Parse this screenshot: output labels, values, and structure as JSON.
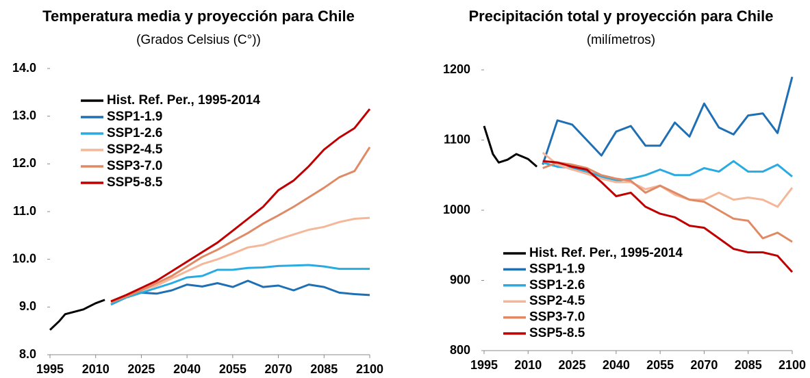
{
  "chart_data": [
    {
      "type": "line",
      "title": "Temperatura media y proyección para Chile",
      "subtitle": "(Grados Celsius (C°))",
      "xlim": [
        1995,
        2100
      ],
      "xticks": [
        1995,
        2010,
        2025,
        2040,
        2055,
        2070,
        2085,
        2100
      ],
      "ylim": [
        8,
        14
      ],
      "yticks": [
        {
          "value": 8,
          "label": "8.0"
        },
        {
          "value": 9,
          "label": "9.0"
        },
        {
          "value": 10,
          "label": "10.0"
        },
        {
          "value": 11,
          "label": "11.0"
        },
        {
          "value": 12,
          "label": "12.0"
        },
        {
          "value": 13,
          "label": "13.0"
        },
        {
          "value": 14,
          "label": "14.0"
        }
      ],
      "legend": "upper left",
      "series": [
        {
          "name": "Hist. Ref. Per., 1995-2014",
          "color": "#000000",
          "x": [
            1995,
            1998,
            2000,
            2003,
            2006,
            2010,
            2013
          ],
          "values": [
            8.52,
            8.7,
            8.85,
            8.9,
            8.95,
            9.08,
            9.15
          ]
        },
        {
          "name": "SSP1-1.9",
          "color": "#1f6fb4",
          "x": [
            2015,
            2020,
            2025,
            2030,
            2035,
            2040,
            2045,
            2050,
            2055,
            2060,
            2065,
            2070,
            2075,
            2080,
            2085,
            2090,
            2095,
            2100
          ],
          "values": [
            9.05,
            9.2,
            9.3,
            9.28,
            9.35,
            9.47,
            9.43,
            9.5,
            9.42,
            9.55,
            9.42,
            9.45,
            9.35,
            9.47,
            9.42,
            9.3,
            9.27,
            9.25
          ]
        },
        {
          "name": "SSP1-2.6",
          "color": "#29abe2",
          "x": [
            2015,
            2020,
            2025,
            2030,
            2035,
            2040,
            2045,
            2050,
            2055,
            2060,
            2065,
            2070,
            2075,
            2080,
            2085,
            2090,
            2095,
            2100
          ],
          "values": [
            9.05,
            9.2,
            9.3,
            9.4,
            9.5,
            9.62,
            9.65,
            9.78,
            9.78,
            9.82,
            9.83,
            9.86,
            9.87,
            9.88,
            9.85,
            9.8,
            9.8,
            9.8
          ]
        },
        {
          "name": "SSP2-4.5",
          "color": "#f4b79a",
          "x": [
            2015,
            2020,
            2025,
            2030,
            2035,
            2040,
            2045,
            2050,
            2055,
            2060,
            2065,
            2070,
            2075,
            2080,
            2085,
            2090,
            2095,
            2100
          ],
          "values": [
            9.1,
            9.22,
            9.35,
            9.45,
            9.6,
            9.75,
            9.9,
            10.0,
            10.12,
            10.25,
            10.3,
            10.42,
            10.52,
            10.62,
            10.68,
            10.78,
            10.85,
            10.87
          ]
        },
        {
          "name": "SSP3-7.0",
          "color": "#e08a65",
          "x": [
            2015,
            2020,
            2025,
            2030,
            2035,
            2040,
            2045,
            2050,
            2055,
            2060,
            2065,
            2070,
            2075,
            2080,
            2085,
            2090,
            2095,
            2100
          ],
          "values": [
            9.1,
            9.22,
            9.35,
            9.5,
            9.65,
            9.85,
            10.05,
            10.2,
            10.38,
            10.55,
            10.75,
            10.92,
            11.1,
            11.3,
            11.5,
            11.72,
            11.85,
            12.35
          ]
        },
        {
          "name": "SSP5-8.5",
          "color": "#c00000",
          "x": [
            2015,
            2020,
            2025,
            2030,
            2035,
            2040,
            2045,
            2050,
            2055,
            2060,
            2065,
            2070,
            2075,
            2080,
            2085,
            2090,
            2095,
            2100
          ],
          "values": [
            9.12,
            9.25,
            9.4,
            9.55,
            9.75,
            9.95,
            10.15,
            10.35,
            10.6,
            10.85,
            11.1,
            11.45,
            11.65,
            11.95,
            12.3,
            12.55,
            12.75,
            13.15
          ]
        }
      ]
    },
    {
      "type": "line",
      "title": "Precipitación total y proyección para Chile",
      "subtitle": "(milímetros)",
      "xlim": [
        1995,
        2100
      ],
      "xticks": [
        1995,
        2010,
        2025,
        2040,
        2055,
        2070,
        2085,
        2100
      ],
      "ylim": [
        800,
        1200
      ],
      "yticks": [
        800,
        900,
        1000,
        1100,
        1200
      ],
      "legend": "lower left",
      "series": [
        {
          "name": "Hist. Ref. Per., 1995-2014",
          "color": "#000000",
          "x": [
            1995,
            1998,
            2000,
            2003,
            2006,
            2010,
            2013
          ],
          "values": [
            1120,
            1080,
            1068,
            1072,
            1080,
            1073,
            1062
          ]
        },
        {
          "name": "SSP1-1.9",
          "color": "#1f6fb4",
          "x": [
            2015,
            2020,
            2025,
            2030,
            2035,
            2040,
            2045,
            2050,
            2055,
            2060,
            2065,
            2070,
            2075,
            2080,
            2085,
            2090,
            2095,
            2100
          ],
          "values": [
            1065,
            1128,
            1122,
            1100,
            1078,
            1112,
            1120,
            1092,
            1092,
            1125,
            1105,
            1152,
            1118,
            1108,
            1135,
            1138,
            1110,
            1190
          ]
        },
        {
          "name": "SSP1-2.6",
          "color": "#29abe2",
          "x": [
            2015,
            2020,
            2025,
            2030,
            2035,
            2040,
            2045,
            2050,
            2055,
            2060,
            2065,
            2070,
            2075,
            2080,
            2085,
            2090,
            2095,
            2100
          ],
          "values": [
            1068,
            1062,
            1060,
            1055,
            1048,
            1042,
            1045,
            1050,
            1058,
            1050,
            1050,
            1060,
            1055,
            1070,
            1055,
            1055,
            1065,
            1048
          ]
        },
        {
          "name": "SSP2-4.5",
          "color": "#f4b79a",
          "x": [
            2015,
            2020,
            2025,
            2030,
            2035,
            2040,
            2045,
            2050,
            2055,
            2060,
            2065,
            2070,
            2075,
            2080,
            2085,
            2090,
            2095,
            2100
          ],
          "values": [
            1082,
            1065,
            1058,
            1052,
            1045,
            1040,
            1040,
            1030,
            1035,
            1022,
            1015,
            1015,
            1025,
            1015,
            1018,
            1015,
            1005,
            1032
          ]
        },
        {
          "name": "SSP3-7.0",
          "color": "#e08a65",
          "x": [
            2015,
            2020,
            2025,
            2030,
            2035,
            2040,
            2045,
            2050,
            2055,
            2060,
            2065,
            2070,
            2075,
            2080,
            2085,
            2090,
            2095,
            2100
          ],
          "values": [
            1060,
            1068,
            1065,
            1060,
            1050,
            1045,
            1042,
            1025,
            1035,
            1025,
            1015,
            1012,
            1000,
            988,
            985,
            960,
            968,
            955
          ]
        },
        {
          "name": "SSP5-8.5",
          "color": "#c00000",
          "x": [
            2015,
            2020,
            2025,
            2030,
            2035,
            2040,
            2045,
            2050,
            2055,
            2060,
            2065,
            2070,
            2075,
            2080,
            2085,
            2090,
            2095,
            2100
          ],
          "values": [
            1070,
            1068,
            1062,
            1058,
            1040,
            1020,
            1025,
            1005,
            995,
            990,
            978,
            975,
            960,
            945,
            940,
            940,
            935,
            912
          ]
        }
      ]
    }
  ]
}
